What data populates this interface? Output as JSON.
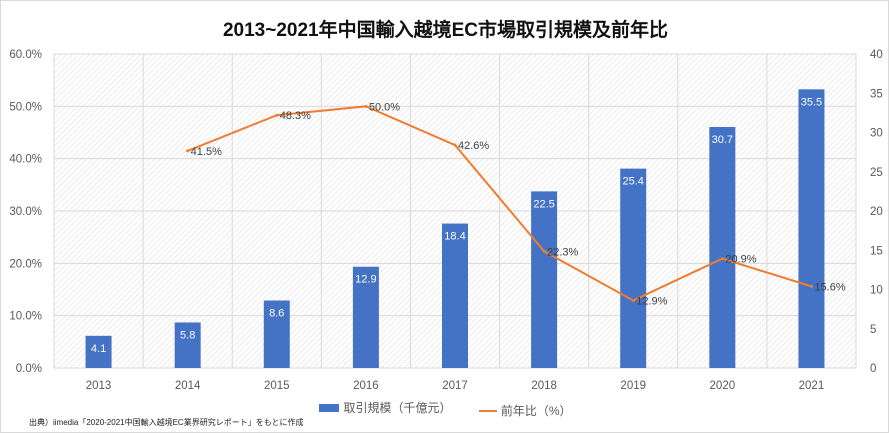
{
  "chart_data": {
    "type": "bar+line",
    "title": "2013~2021年中国輸入越境EC市場取引規模及前年比",
    "categories": [
      "2013",
      "2014",
      "2015",
      "2016",
      "2017",
      "2018",
      "2019",
      "2020",
      "2021"
    ],
    "series": [
      {
        "name": "取引規模（千億元）",
        "type": "bar",
        "axis": "right",
        "values": [
          4.1,
          5.8,
          8.6,
          12.9,
          18.4,
          22.5,
          25.4,
          30.7,
          35.5
        ],
        "color": "#4472c4"
      },
      {
        "name": "前年比（%）",
        "type": "line",
        "axis": "left",
        "values": [
          null,
          41.5,
          48.3,
          50.0,
          42.6,
          22.3,
          12.9,
          20.9,
          15.6
        ],
        "color": "#ed7d31"
      }
    ],
    "y_left": {
      "range": [
        0,
        60
      ],
      "ticks": [
        "0.0%",
        "10.0%",
        "20.0%",
        "30.0%",
        "40.0%",
        "50.0%",
        "60.0%"
      ]
    },
    "y_right": {
      "range": [
        0,
        40
      ],
      "ticks": [
        "0",
        "5",
        "10",
        "15",
        "20",
        "25",
        "30",
        "35",
        "40"
      ]
    },
    "grid": true,
    "legend": "bottom"
  },
  "source": "出典）iimedia「2020-2021中国輸入越境EC業界研究レポート」をもとに作成"
}
